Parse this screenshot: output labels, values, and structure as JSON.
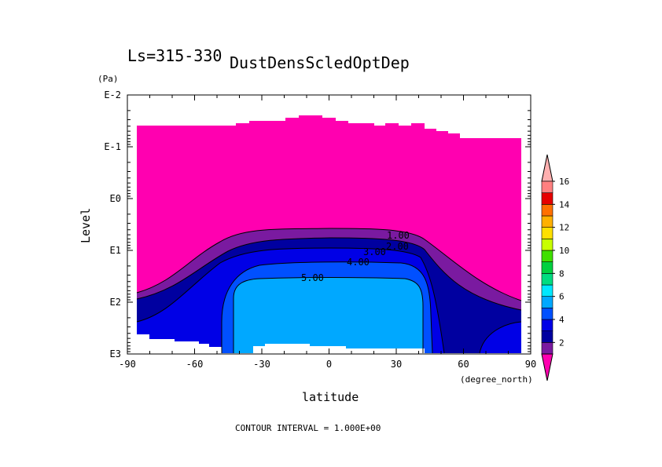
{
  "chart_data": {
    "type": "heatmap",
    "title": "DustDensScledOptDep",
    "subtitle": "Ls=315-330",
    "xlabel": "latitude",
    "x_unit": "(degree_north)",
    "ylabel": "Level",
    "y_unit": "(Pa)",
    "x_ticks": [
      "-90",
      "-60",
      "-30",
      "0",
      "30",
      "60",
      "90"
    ],
    "y_ticks": [
      "E-2",
      "E-1",
      "E0",
      "E1",
      "E2",
      "E3"
    ],
    "xlim": [
      -90,
      90
    ],
    "ylim_log10_pa": [
      -2,
      3
    ],
    "y_scale": "log",
    "contour_interval_text": "CONTOUR INTERVAL = 1.000E+00",
    "contour_labels": [
      {
        "text": "1.00",
        "value": 1
      },
      {
        "text": "2.00",
        "value": 2
      },
      {
        "text": "3.00",
        "value": 3
      },
      {
        "text": "4.00",
        "value": 4
      },
      {
        "text": "5.00",
        "value": 5
      }
    ],
    "colorbar": {
      "levels": [
        1,
        2,
        3,
        4,
        5,
        6,
        7,
        8,
        9,
        10,
        11,
        12,
        13,
        14,
        15,
        16,
        17
      ],
      "tick_labels": [
        "2",
        "4",
        "6",
        "8",
        "10",
        "12",
        "14",
        "16"
      ],
      "colors": [
        "#ff00b0",
        "#7a1aa0",
        "#0000a0",
        "#0000e6",
        "#0050ff",
        "#00a8ff",
        "#00e8ff",
        "#00dc80",
        "#00d040",
        "#40e000",
        "#c8ff00",
        "#ffe000",
        "#ffb000",
        "#ff7000",
        "#e60000",
        "#ff8080",
        "#ffb0b0"
      ]
    },
    "regions": [
      {
        "level_range": "1-2",
        "color": "#ff00b0",
        "lat_range": [
          -88,
          88
        ],
        "top_log10_pa": -0.9
      },
      {
        "level_range": "2-3",
        "color": "#7a1aa0",
        "lat_range": [
          -88,
          86
        ],
        "top_log10_pa": 1.1
      },
      {
        "level_range": "3-4",
        "color": "#0000a0",
        "lat_range": [
          -88,
          86
        ],
        "top_log10_pa": 1.3
      },
      {
        "level_range": "4-5",
        "color": "#0000e6",
        "lat_range": [
          -88,
          86
        ],
        "top_log10_pa": 1.5
      },
      {
        "level_range": "5-6",
        "color": "#0050ff",
        "lat_range": [
          -48,
          55
        ],
        "top_log10_pa": 1.7
      },
      {
        "level_range": "6-7",
        "color": "#00a8ff",
        "lat_range": [
          -40,
          43
        ],
        "top_log10_pa": 2.0
      }
    ]
  }
}
